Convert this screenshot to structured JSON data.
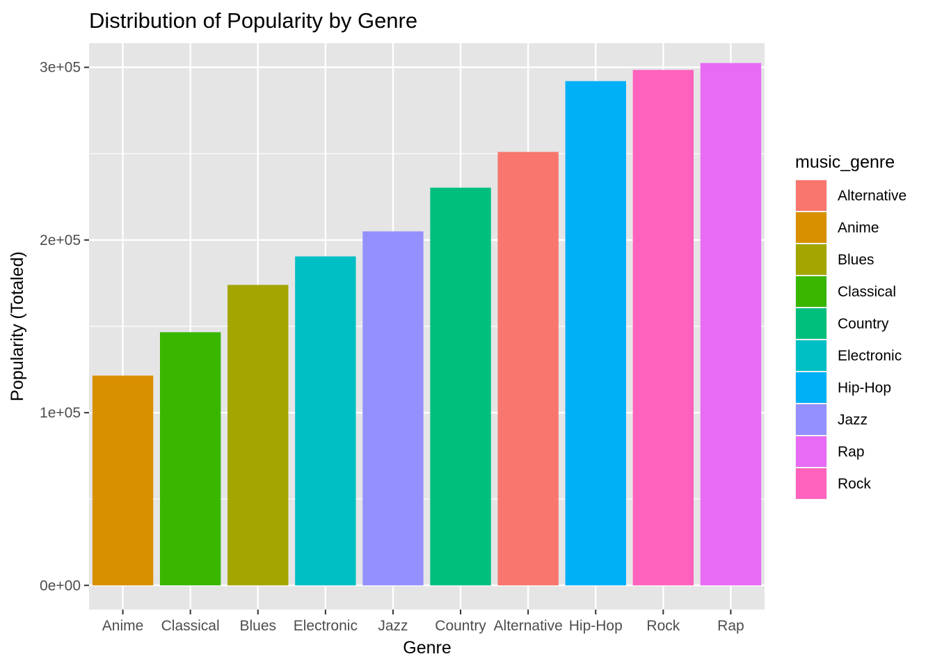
{
  "chart_data": {
    "type": "bar",
    "title": "Distribution of Popularity by Genre",
    "xlabel": "Genre",
    "ylabel": "Popularity (Totaled)",
    "ylim": [
      -14000,
      314000
    ],
    "y_ticks": [
      0,
      100000,
      200000,
      300000
    ],
    "y_tick_labels": [
      "0e+00",
      "1e+05",
      "2e+05",
      "3e+05"
    ],
    "y_minor_ticks": [
      50000,
      150000,
      250000
    ],
    "grid": true,
    "background": "#e5e5e5",
    "categories": [
      "Anime",
      "Classical",
      "Blues",
      "Electronic",
      "Jazz",
      "Country",
      "Alternative",
      "Hip-Hop",
      "Rock",
      "Rap"
    ],
    "values": [
      121500,
      146600,
      174000,
      190500,
      205000,
      230300,
      251000,
      292000,
      298500,
      302500
    ],
    "fill_by": "music_genre",
    "legend": {
      "title": "music_genre",
      "position": "right",
      "entries": [
        {
          "label": "Alternative",
          "color": "#F8766D"
        },
        {
          "label": "Anime",
          "color": "#D89000"
        },
        {
          "label": "Blues",
          "color": "#A3A500"
        },
        {
          "label": "Classical",
          "color": "#39B600"
        },
        {
          "label": "Country",
          "color": "#00BF7D"
        },
        {
          "label": "Electronic",
          "color": "#00BFC4"
        },
        {
          "label": "Hip-Hop",
          "color": "#00B0F6"
        },
        {
          "label": "Jazz",
          "color": "#9590FF"
        },
        {
          "label": "Rap",
          "color": "#E76BF3"
        },
        {
          "label": "Rock",
          "color": "#FF62BC"
        }
      ]
    }
  }
}
